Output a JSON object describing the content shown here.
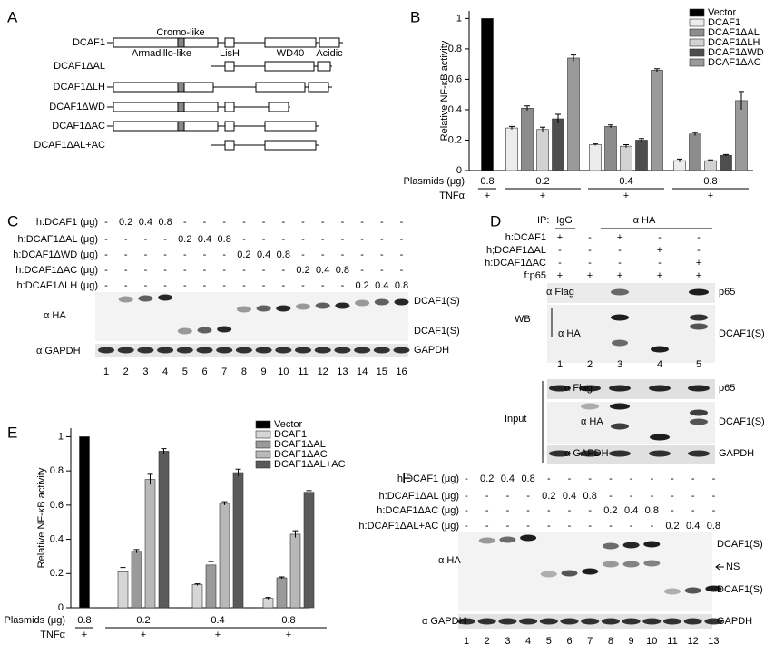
{
  "panels": [
    "A",
    "B",
    "C",
    "D",
    "E",
    "F"
  ],
  "diagram": {
    "constructs": [
      "DCAF1",
      "DCAF1ΔAL",
      "DCAF1ΔLH",
      "DCAF1ΔWD",
      "DCAF1ΔAC",
      "DCAF1ΔAL+AC"
    ],
    "domains": [
      "Cromo-like",
      "Armadillo-like",
      "LisH",
      "WD40",
      "Acidic"
    ]
  },
  "chart_data": [
    {
      "type": "bar",
      "y_label": "Relative NF-κB activity",
      "categories": [
        "0.8",
        "0.2",
        "0.4",
        "0.8"
      ],
      "row_labels": [
        "Plasmids (μg)",
        "TNFα"
      ],
      "treatment": [
        "+",
        "+",
        "+",
        "+"
      ],
      "ylim": [
        0,
        1.05
      ],
      "yticks": [
        0,
        0.2,
        0.4,
        0.6,
        0.8,
        1
      ],
      "legend": "upper right",
      "series": [
        {
          "name": "Vector",
          "color": "#000000",
          "values": [
            1,
            null,
            null,
            null
          ],
          "errors": [
            null,
            null,
            null,
            null
          ]
        },
        {
          "name": "DCAF1",
          "color": "#ececec",
          "values": [
            null,
            0.28,
            0.17,
            0.065
          ],
          "errors": [
            null,
            0.01,
            0.005,
            0.01
          ]
        },
        {
          "name": "DCAF1ΔAL",
          "color": "#8c8c8c",
          "values": [
            null,
            0.41,
            0.29,
            0.24
          ],
          "errors": [
            null,
            0.015,
            0.01,
            0.01
          ]
        },
        {
          "name": "DCAF1ΔLH",
          "color": "#d2d2d2",
          "values": [
            null,
            0.27,
            0.16,
            0.065
          ],
          "errors": [
            null,
            0.015,
            0.01,
            0.005
          ]
        },
        {
          "name": "DCAF1ΔWD",
          "color": "#4e4e4e",
          "values": [
            null,
            0.34,
            0.2,
            0.1
          ],
          "errors": [
            null,
            0.03,
            0.01,
            0.005
          ]
        },
        {
          "name": "DCAF1ΔAC",
          "color": "#9a9a9a",
          "values": [
            null,
            0.74,
            0.66,
            0.46
          ],
          "errors": [
            null,
            0.02,
            0.01,
            0.06
          ]
        }
      ]
    },
    {
      "type": "bar",
      "y_label": "Relative NF-κB activity",
      "categories": [
        "0.8",
        "0.2",
        "0.4",
        "0.8"
      ],
      "row_labels": [
        "Plasmids (μg)",
        "TNFα"
      ],
      "treatment": [
        "+",
        "+",
        "+",
        "+"
      ],
      "ylim": [
        0,
        1.05
      ],
      "yticks": [
        0,
        0.2,
        0.4,
        0.6,
        0.8,
        1
      ],
      "legend": "upper right",
      "series": [
        {
          "name": "Vector",
          "color": "#000000",
          "values": [
            1,
            null,
            null,
            null
          ],
          "errors": [
            null,
            null,
            null,
            null
          ]
        },
        {
          "name": "DCAF1",
          "color": "#d6d6d6",
          "values": [
            null,
            0.21,
            0.135,
            0.055
          ],
          "errors": [
            null,
            0.025,
            0.005,
            0.005
          ]
        },
        {
          "name": "DCAF1ΔAL",
          "color": "#9a9a9a",
          "values": [
            null,
            0.33,
            0.25,
            0.175
          ],
          "errors": [
            null,
            0.01,
            0.02,
            0.005
          ]
        },
        {
          "name": "DCAF1ΔAC",
          "color": "#b8b8b8",
          "values": [
            null,
            0.75,
            0.61,
            0.43
          ],
          "errors": [
            null,
            0.03,
            0.01,
            0.02
          ]
        },
        {
          "name": "DCAF1ΔAL+AC",
          "color": "#5a5a5a",
          "values": [
            null,
            0.915,
            0.79,
            0.675
          ],
          "errors": [
            null,
            0.015,
            0.02,
            0.01
          ]
        }
      ]
    }
  ],
  "blot_c": {
    "rows": [
      {
        "label": "h:DCAF1 (μg)",
        "cells": [
          "-",
          "0.2",
          "0.4",
          "0.8",
          "-",
          "-",
          "-",
          "-",
          "-",
          "-",
          "-",
          "-",
          "-",
          "-",
          "-",
          "-"
        ]
      },
      {
        "label": "h:DCAF1ΔAL (μg)",
        "cells": [
          "-",
          "-",
          "-",
          "-",
          "0.2",
          "0.4",
          "0.8",
          "-",
          "-",
          "-",
          "-",
          "-",
          "-",
          "-",
          "-",
          "-"
        ]
      },
      {
        "label": "h:DCAF1ΔWD (μg)",
        "cells": [
          "-",
          "-",
          "-",
          "-",
          "-",
          "-",
          "-",
          "0.2",
          "0.4",
          "0.8",
          "-",
          "-",
          "-",
          "-",
          "-",
          "-"
        ]
      },
      {
        "label": "h:DCAF1ΔAC (μg)",
        "cells": [
          "-",
          "-",
          "-",
          "-",
          "-",
          "-",
          "-",
          "-",
          "-",
          "-",
          "0.2",
          "0.4",
          "0.8",
          "-",
          "-",
          "-"
        ]
      },
      {
        "label": "h:DCAF1ΔLH (μg)",
        "cells": [
          "-",
          "-",
          "-",
          "-",
          "-",
          "-",
          "-",
          "-",
          "-",
          "-",
          "-",
          "-",
          "-",
          "0.2",
          "0.4",
          "0.8"
        ]
      }
    ],
    "lanes": [
      "1",
      "2",
      "3",
      "4",
      "5",
      "6",
      "7",
      "8",
      "9",
      "10",
      "11",
      "12",
      "13",
      "14",
      "15",
      "16"
    ],
    "left_labels": [
      "α HA",
      "α GAPDH"
    ],
    "right_labels": [
      "DCAF1(S)",
      "DCAF1(S)",
      "GAPDH"
    ]
  },
  "blot_d": {
    "header": [
      "IP:",
      "IgG",
      "α HA"
    ],
    "rows": [
      {
        "label": "h:DCAF1",
        "cells": [
          "+",
          "-",
          "+",
          "-",
          "-"
        ]
      },
      {
        "label": "h;DCAF1ΔAL",
        "cells": [
          "-",
          "-",
          "-",
          "+",
          "-"
        ]
      },
      {
        "label": "h:DCAF1ΔAC",
        "cells": [
          "-",
          "-",
          "-",
          "-",
          "+"
        ]
      },
      {
        "label": "f:p65",
        "cells": [
          "+",
          "+",
          "+",
          "+",
          "+"
        ]
      }
    ],
    "lanes": [
      "1",
      "2",
      "3",
      "4",
      "5"
    ],
    "wb": "WB",
    "input": "Input",
    "wb_left": [
      "α Flag",
      "α HA"
    ],
    "wb_right": [
      "p65",
      "DCAF1(S)"
    ],
    "input_left": [
      "α Flag",
      "α HA",
      "α GAPDH"
    ],
    "input_right": [
      "p65",
      "DCAF1(S)",
      "GAPDH"
    ]
  },
  "blot_f": {
    "rows": [
      {
        "label": "h:DCAF1 (μg)",
        "cells": [
          "-",
          "0.2",
          "0.4",
          "0.8",
          "-",
          "-",
          "-",
          "-",
          "-",
          "-",
          "-",
          "-",
          "-"
        ]
      },
      {
        "label": "h:DCAF1ΔAL (μg)",
        "cells": [
          "-",
          "-",
          "-",
          "-",
          "0.2",
          "0.4",
          "0.8",
          "-",
          "-",
          "-",
          "-",
          "-",
          "-"
        ]
      },
      {
        "label": "h:DCAF1ΔAC (μg)",
        "cells": [
          "-",
          "-",
          "-",
          "-",
          "-",
          "-",
          "-",
          "0.2",
          "0.4",
          "0.8",
          "-",
          "-",
          "-"
        ]
      },
      {
        "label": "h:DCAF1ΔAL+AC (μg)",
        "cells": [
          "-",
          "-",
          "-",
          "-",
          "-",
          "-",
          "-",
          "-",
          "-",
          "-",
          "0.2",
          "0.4",
          "0.8"
        ]
      }
    ],
    "lanes": [
      "1",
      "2",
      "3",
      "4",
      "5",
      "6",
      "7",
      "8",
      "9",
      "10",
      "11",
      "12",
      "13"
    ],
    "left_labels": [
      "α HA",
      "α GAPDH"
    ],
    "right_labels": [
      "DCAF1(S)",
      "NS",
      "DCAF1(S)",
      "GAPDH"
    ]
  }
}
